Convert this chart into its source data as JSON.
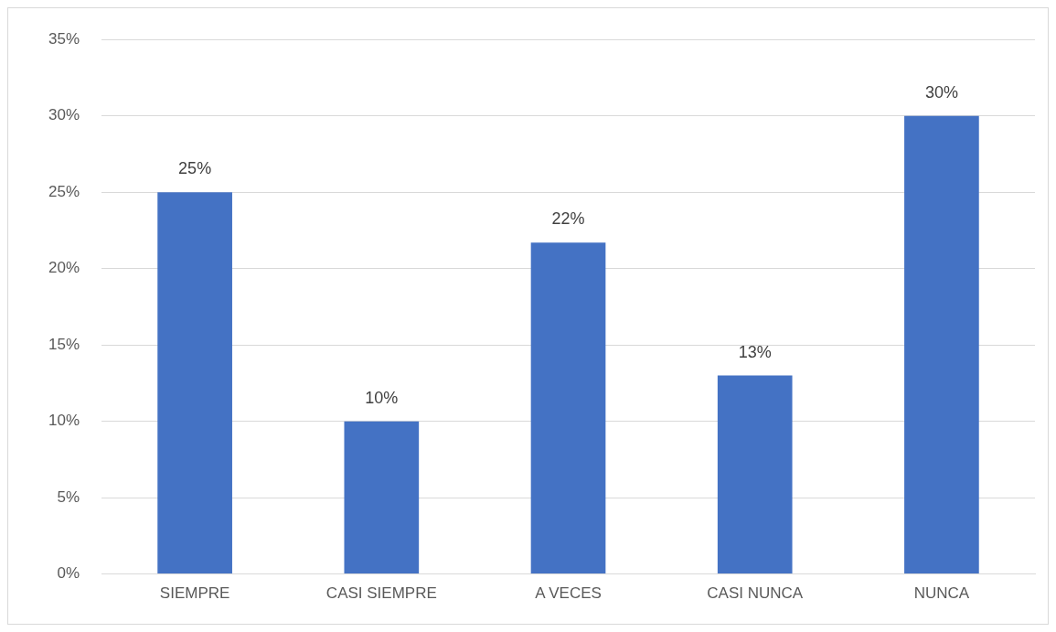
{
  "chart_data": {
    "type": "bar",
    "categories": [
      "SIEMPRE",
      "CASI SIEMPRE",
      "A VECES",
      "CASI NUNCA",
      "NUNCA"
    ],
    "series": [
      {
        "color": "#4472c4",
        "values": [
          25,
          10,
          21.7,
          13,
          30
        ],
        "value_labels": [
          "25%",
          "10%",
          "22%",
          "13%",
          "30%"
        ]
      }
    ],
    "ylim": [
      0,
      35
    ],
    "yticks": [
      {
        "value": 0,
        "label": "0%"
      },
      {
        "value": 5,
        "label": "5%"
      },
      {
        "value": 10,
        "label": "10%"
      },
      {
        "value": 15,
        "label": "15%"
      },
      {
        "value": 20,
        "label": "20%"
      },
      {
        "value": 25,
        "label": "25%"
      },
      {
        "value": 30,
        "label": "30%"
      },
      {
        "value": 35,
        "label": "35%"
      }
    ],
    "grid": "y",
    "legend": false
  }
}
